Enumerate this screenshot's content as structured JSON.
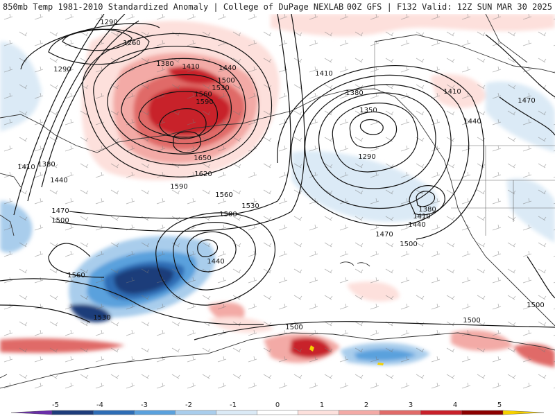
{
  "header": {
    "title": "850mb Temp 1981-2010 Standardized Anomaly | College of DuPage NEXLAB",
    "run_info": "00Z GFS | F132 Valid: 12Z SUN MAR 30 2025"
  },
  "colorbar": {
    "min": -6,
    "max": 6,
    "ticks": [
      "-5",
      "-4",
      "-3",
      "-2",
      "-1",
      "0",
      "1",
      "2",
      "3",
      "4",
      "5"
    ],
    "colors": [
      "#6a2ea8",
      "#1e3c7a",
      "#2e6db5",
      "#5aa1dd",
      "#a9cdec",
      "#dbeaf6",
      "#ffffff",
      "#fde0dc",
      "#f3aaa6",
      "#e06a68",
      "#c8202a",
      "#8b0000",
      "#f5d000"
    ]
  },
  "contour_labels": [
    {
      "text": "1290"
    },
    {
      "text": "1260"
    },
    {
      "text": "1290"
    },
    {
      "text": "1380"
    },
    {
      "text": "1410"
    },
    {
      "text": "1440"
    },
    {
      "text": "1500"
    },
    {
      "text": "1530"
    },
    {
      "text": "1560"
    },
    {
      "text": "1590"
    },
    {
      "text": "1650"
    },
    {
      "text": "1620"
    },
    {
      "text": "1590"
    },
    {
      "text": "1560"
    },
    {
      "text": "1530"
    },
    {
      "text": "1410"
    },
    {
      "text": "1380"
    },
    {
      "text": "1440"
    },
    {
      "text": "1470"
    },
    {
      "text": "1500"
    },
    {
      "text": "1500"
    },
    {
      "text": "1440"
    },
    {
      "text": "1560"
    },
    {
      "text": "1530"
    },
    {
      "text": "1410"
    },
    {
      "text": "1380"
    },
    {
      "text": "1350"
    },
    {
      "text": "1290"
    },
    {
      "text": "1410"
    },
    {
      "text": "1440"
    },
    {
      "text": "1470"
    },
    {
      "text": "1380"
    },
    {
      "text": "1410"
    },
    {
      "text": "1440"
    },
    {
      "text": "1470"
    },
    {
      "text": "1500"
    },
    {
      "text": "1500"
    },
    {
      "text": "1500"
    },
    {
      "text": "1500"
    }
  ]
}
